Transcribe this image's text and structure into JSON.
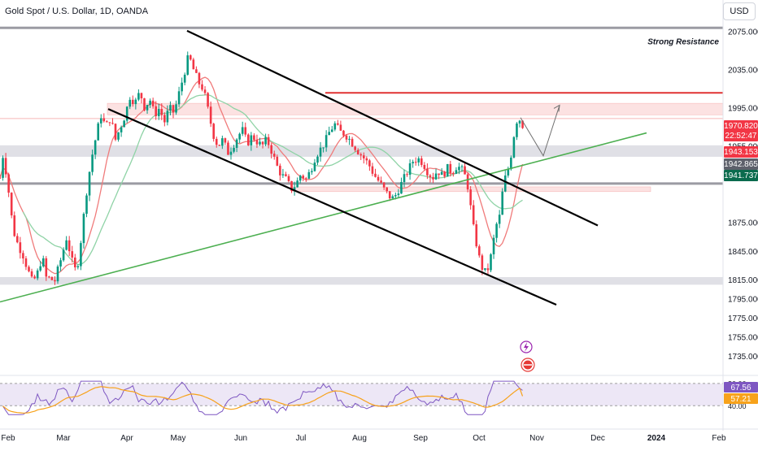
{
  "header": {
    "title": "Gold Spot / U.S. Dollar, 1D, OANDA"
  },
  "currency_button": "USD",
  "annotation": "Strong Resistance",
  "colors": {
    "up": "#089981",
    "down": "#f23645",
    "ma": "#f07b7b",
    "ma_slow": "#8fd3a6",
    "trendline": "#4caf50",
    "channel": "#000000",
    "resistance_line": "#e03232",
    "zone_red": "#fbd5d5",
    "zone_gray": "#e0e0e6",
    "rsi_line": "#7e57c2",
    "rsi_ma": "#f7a21b",
    "rsi_band": "#ede7f6"
  },
  "price_badges": {
    "last_price": "1970.820",
    "countdown": "22:52:47",
    "level_red": "1943.153",
    "level_gray": "1942.865",
    "level_green": "1941.737"
  },
  "rsi_badges": {
    "rsi": "67.56",
    "rsi_ma": "57.21"
  },
  "chart_data": {
    "type": "candlestick",
    "instrument": "Gold Spot / U.S. Dollar",
    "timeframe": "1D",
    "source": "OANDA",
    "y_axis": {
      "ticks": [
        "2075.000",
        "2035.000",
        "1995.000",
        "1955.000",
        "1875.000",
        "1845.000",
        "1815.000",
        "1795.000",
        "1775.000",
        "1755.000",
        "1735.000"
      ],
      "range": [
        1725,
        2085
      ]
    },
    "x_axis": {
      "labels": [
        "Feb",
        "Mar",
        "Apr",
        "May",
        "Jun",
        "Jul",
        "Aug",
        "Sep",
        "Oct",
        "Nov",
        "Dec",
        "2024",
        "Feb"
      ]
    },
    "price_path": [
      [
        0,
        1922
      ],
      [
        4,
        1948
      ],
      [
        10,
        1912
      ],
      [
        16,
        1868
      ],
      [
        22,
        1852
      ],
      [
        28,
        1842
      ],
      [
        34,
        1826
      ],
      [
        40,
        1812
      ],
      [
        46,
        1822
      ],
      [
        52,
        1840
      ],
      [
        58,
        1812
      ],
      [
        62,
        1820
      ],
      [
        66,
        1810
      ],
      [
        70,
        1822
      ],
      [
        76,
        1840
      ],
      [
        82,
        1860
      ],
      [
        88,
        1836
      ],
      [
        94,
        1822
      ],
      [
        100,
        1860
      ],
      [
        106,
        1905
      ],
      [
        112,
        1940
      ],
      [
        118,
        1965
      ],
      [
        124,
        1988
      ],
      [
        130,
        1975
      ],
      [
        136,
        1985
      ],
      [
        142,
        1962
      ],
      [
        148,
        1975
      ],
      [
        154,
        1988
      ],
      [
        160,
        2008
      ],
      [
        166,
        2000
      ],
      [
        172,
        2012
      ],
      [
        178,
        1995
      ],
      [
        184,
        2005
      ],
      [
        190,
        1988
      ],
      [
        196,
        1995
      ],
      [
        202,
        1980
      ],
      [
        208,
        1995
      ],
      [
        214,
        1990
      ],
      [
        220,
        2010
      ],
      [
        226,
        2030
      ],
      [
        232,
        2050
      ],
      [
        238,
        2035
      ],
      [
        244,
        2022
      ],
      [
        250,
        2015
      ],
      [
        256,
        1992
      ],
      [
        262,
        1968
      ],
      [
        268,
        1955
      ],
      [
        274,
        1962
      ],
      [
        280,
        1948
      ],
      [
        286,
        1955
      ],
      [
        292,
        1965
      ],
      [
        298,
        1972
      ],
      [
        304,
        1958
      ],
      [
        310,
        1966
      ],
      [
        316,
        1960
      ],
      [
        322,
        1955
      ],
      [
        328,
        1962
      ],
      [
        334,
        1950
      ],
      [
        340,
        1935
      ],
      [
        346,
        1925
      ],
      [
        352,
        1920
      ],
      [
        358,
        1910
      ],
      [
        364,
        1915
      ],
      [
        370,
        1926
      ],
      [
        376,
        1920
      ],
      [
        382,
        1930
      ],
      [
        388,
        1945
      ],
      [
        394,
        1952
      ],
      [
        400,
        1960
      ],
      [
        406,
        1972
      ],
      [
        412,
        1978
      ],
      [
        418,
        1970
      ],
      [
        424,
        1968
      ],
      [
        430,
        1962
      ],
      [
        436,
        1955
      ],
      [
        442,
        1948
      ],
      [
        448,
        1942
      ],
      [
        454,
        1935
      ],
      [
        460,
        1925
      ],
      [
        466,
        1918
      ],
      [
        472,
        1910
      ],
      [
        478,
        1903
      ],
      [
        484,
        1900
      ],
      [
        490,
        1910
      ],
      [
        496,
        1920
      ],
      [
        502,
        1930
      ],
      [
        508,
        1940
      ],
      [
        514,
        1942
      ],
      [
        520,
        1938
      ],
      [
        526,
        1928
      ],
      [
        532,
        1922
      ],
      [
        538,
        1930
      ],
      [
        544,
        1924
      ],
      [
        550,
        1932
      ],
      [
        556,
        1928
      ],
      [
        562,
        1935
      ],
      [
        568,
        1930
      ],
      [
        574,
        1920
      ],
      [
        578,
        1895
      ],
      [
        582,
        1870
      ],
      [
        586,
        1852
      ],
      [
        590,
        1835
      ],
      [
        594,
        1825
      ],
      [
        598,
        1822
      ],
      [
        602,
        1832
      ],
      [
        606,
        1852
      ],
      [
        610,
        1872
      ],
      [
        614,
        1880
      ],
      [
        618,
        1908
      ],
      [
        622,
        1925
      ],
      [
        626,
        1934
      ],
      [
        630,
        1955
      ],
      [
        634,
        1980
      ],
      [
        638,
        1985
      ],
      [
        642,
        1978
      ],
      [
        646,
        1970.82
      ]
    ],
    "horizontal_levels": [
      {
        "price": 2079,
        "style": "gray-band"
      },
      {
        "price": 2011,
        "style": "red-line",
        "from_day": 400
      },
      {
        "price": 1994,
        "height": 12,
        "style": "red-zone",
        "from_day": 132
      },
      {
        "price": 1984,
        "style": "thin-red-line"
      },
      {
        "price": 1950,
        "height": 12,
        "style": "gray-zone"
      },
      {
        "price": 1916,
        "style": "gray-band"
      },
      {
        "price": 1910,
        "height": 5,
        "style": "red-zone",
        "from_day": 360,
        "to_day": 800
      },
      {
        "price": 1814,
        "height": 8,
        "style": "gray-zone"
      }
    ],
    "trendlines": [
      {
        "name": "uptrend",
        "from": [
          0,
          1792
        ],
        "to": [
          795,
          1969
        ],
        "color": "green"
      },
      {
        "name": "channel-upper",
        "from": [
          230,
          2076
        ],
        "to": [
          735,
          1872
        ],
        "color": "black"
      },
      {
        "name": "channel-lower",
        "from": [
          133,
          1994
        ],
        "to": [
          684,
          1789
        ],
        "color": "black"
      }
    ],
    "projection": {
      "points": [
        [
          640,
          1985
        ],
        [
          668,
          1945
        ],
        [
          688,
          1998
        ]
      ],
      "color": "gray"
    },
    "rsi": {
      "ylim": [
        0,
        100
      ],
      "ticks": [
        "80.00",
        "40.00"
      ],
      "band": [
        40,
        80
      ],
      "last": 67.56,
      "ma_last": 57.21
    }
  }
}
